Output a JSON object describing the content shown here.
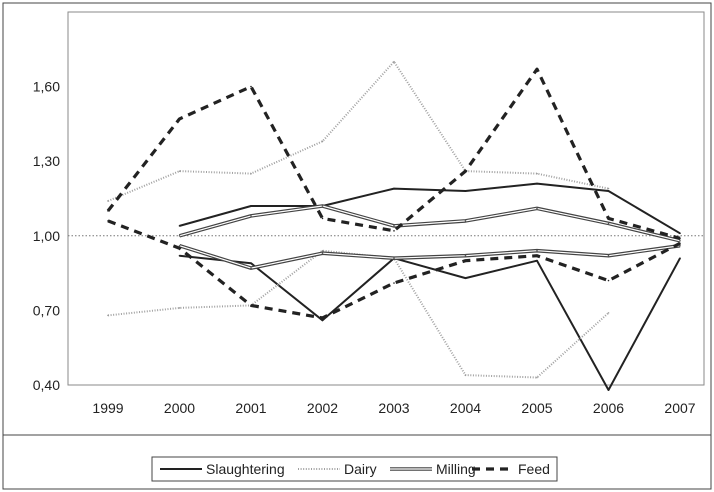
{
  "chart_data": {
    "type": "line",
    "title": "",
    "xlabel": "",
    "ylabel": "",
    "x": [
      "1999",
      "2000",
      "2001",
      "2002",
      "2003",
      "2004",
      "2005",
      "2006",
      "2007"
    ],
    "ylim": [
      0.4,
      1.9
    ],
    "y_ticks": [
      "0,40",
      "0,70",
      "1,00",
      "1,30",
      "1,60"
    ],
    "y_tick_values": [
      0.4,
      0.7,
      1.0,
      1.3,
      1.6
    ],
    "reference_line": 1.0,
    "grid": false,
    "legend_position": "bottom",
    "series": [
      {
        "name": "Slaughtering",
        "style": "solid",
        "color": "#222222",
        "lines": [
          [
            null,
            1.04,
            1.12,
            1.12,
            1.19,
            1.18,
            1.21,
            1.18,
            1.01
          ],
          [
            null,
            0.92,
            0.89,
            0.66,
            0.91,
            0.83,
            0.9,
            0.38,
            0.91
          ]
        ]
      },
      {
        "name": "Dairy",
        "style": "dotted",
        "color": "#9a9a9a",
        "lines": [
          [
            1.14,
            1.26,
            1.25,
            1.38,
            1.7,
            1.26,
            1.25,
            1.19,
            null
          ],
          [
            0.68,
            0.71,
            0.72,
            0.94,
            0.91,
            0.44,
            0.43,
            0.69,
            null
          ]
        ]
      },
      {
        "name": "Milling",
        "style": "double",
        "color": "#555555",
        "lines": [
          [
            null,
            1.0,
            1.08,
            1.12,
            1.04,
            1.06,
            1.11,
            1.05,
            0.98
          ],
          [
            null,
            0.96,
            0.87,
            0.93,
            0.91,
            0.92,
            0.94,
            0.92,
            0.96
          ]
        ]
      },
      {
        "name": "Feed",
        "style": "dashed",
        "color": "#222222",
        "lines": [
          [
            1.1,
            1.47,
            1.6,
            1.07,
            1.02,
            1.26,
            1.67,
            1.07,
            0.99
          ],
          [
            1.06,
            0.95,
            0.72,
            0.67,
            0.81,
            0.9,
            0.92,
            0.82,
            0.97
          ]
        ]
      }
    ]
  }
}
